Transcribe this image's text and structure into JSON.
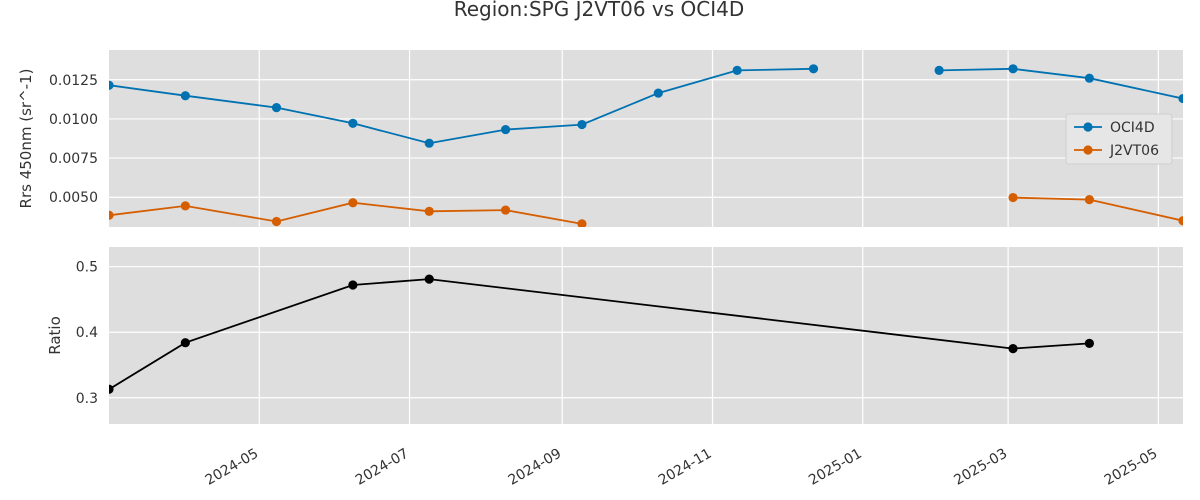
{
  "chart_data": {
    "title": "Region:SPG J2VT06 vs OCI4D",
    "x_range": [
      "2024-03-01",
      "2025-05-11"
    ],
    "x_ticks": [
      "2024-05-01",
      "2024-07-01",
      "2024-09-01",
      "2024-11-01",
      "2025-01-01",
      "2025-03-01",
      "2025-05-01"
    ],
    "x_tick_labels": [
      "2024-05",
      "2024-07",
      "2024-09",
      "2024-11",
      "2025-01",
      "2025-03",
      "2025-05"
    ],
    "grid": true,
    "panels": [
      {
        "type": "line",
        "ylabel": "Rrs 450nm (sr^-1)",
        "ylim": [
          0.0031,
          0.0144
        ],
        "y_ticks": [
          0.005,
          0.0075,
          0.01,
          0.0125
        ],
        "y_tick_labels": [
          "0.0050",
          "0.0075",
          "0.0100",
          "0.0125"
        ],
        "legend_position": "right",
        "series": [
          {
            "name": "OCI4D",
            "color": "#0072B2",
            "points": [
              [
                "2024-03-01",
                0.01215
              ],
              [
                "2024-04-01",
                0.01148
              ],
              [
                "2024-05-08",
                0.01072
              ],
              [
                "2024-06-08",
                0.00972
              ],
              [
                "2024-07-09",
                0.00845
              ],
              [
                "2024-08-09",
                0.00932
              ],
              [
                "2024-09-09",
                0.00964
              ],
              [
                "2024-10-10",
                0.01165
              ],
              [
                "2024-11-11",
                0.0131
              ],
              [
                "2024-12-12",
                0.0132
              ],
              null,
              [
                "2025-02-01",
                0.0131
              ],
              [
                "2025-03-03",
                0.0132
              ],
              [
                "2025-04-03",
                0.0126
              ],
              [
                "2025-05-11",
                0.0113
              ]
            ]
          },
          {
            "name": "J2VT06",
            "color": "#D55E00",
            "points": [
              [
                "2024-03-01",
                0.00385
              ],
              [
                "2024-04-01",
                0.00445
              ],
              [
                "2024-05-08",
                0.00345
              ],
              [
                "2024-06-08",
                0.00465
              ],
              [
                "2024-07-09",
                0.0041
              ],
              [
                "2024-08-09",
                0.00418
              ],
              [
                "2024-09-09",
                0.0033
              ],
              null,
              [
                "2025-03-03",
                0.00498
              ],
              [
                "2025-04-03",
                0.00485
              ],
              [
                "2025-05-11",
                0.0035
              ]
            ]
          }
        ]
      },
      {
        "type": "line",
        "ylabel": "Ratio",
        "ylim": [
          0.26,
          0.53
        ],
        "y_ticks": [
          0.3,
          0.4,
          0.5
        ],
        "y_tick_labels": [
          "0.3",
          "0.4",
          "0.5"
        ],
        "series": [
          {
            "color": "#000000",
            "points": [
              [
                "2024-03-01",
                0.313
              ],
              [
                "2024-04-01",
                0.384
              ],
              [
                "2024-06-08",
                0.472
              ],
              [
                "2024-07-09",
                0.481
              ],
              [
                "2025-03-03",
                0.375
              ],
              [
                "2025-04-03",
                0.383
              ]
            ]
          }
        ]
      }
    ]
  }
}
